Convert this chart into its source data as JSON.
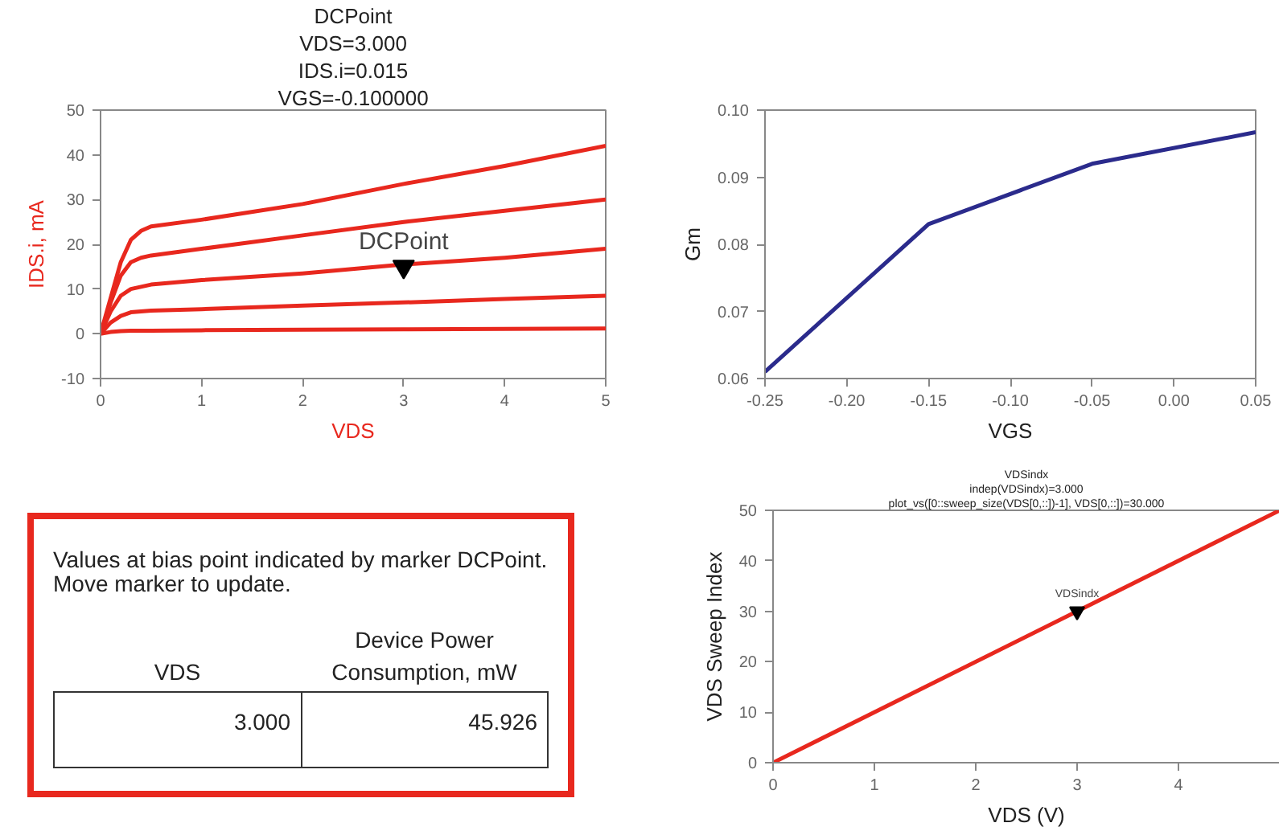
{
  "chart_data": [
    {
      "type": "line",
      "xlabel": "VDS",
      "ylabel": "IDS.i, mA",
      "xlim": [
        0,
        5
      ],
      "ylim": [
        -10,
        50
      ],
      "xticks": [
        0,
        1,
        2,
        3,
        4,
        5
      ],
      "yticks": [
        -10,
        0,
        10,
        20,
        30,
        40,
        50
      ],
      "x": [
        0,
        0.1,
        0.2,
        0.3,
        0.4,
        0.5,
        1,
        2,
        3,
        4,
        5
      ],
      "series": [
        {
          "color": "#e8281e",
          "values": [
            0,
            8,
            16,
            21,
            23,
            24,
            25.5,
            29,
            33.5,
            37.5,
            42
          ]
        },
        {
          "color": "#e8281e",
          "values": [
            0,
            7,
            13,
            16,
            17,
            17.5,
            19,
            22,
            25,
            27.5,
            30
          ]
        },
        {
          "color": "#e8281e",
          "values": [
            0,
            5,
            8.5,
            10,
            10.5,
            11,
            12,
            13.5,
            15.5,
            17,
            19
          ]
        },
        {
          "color": "#e8281e",
          "values": [
            0,
            2.5,
            4,
            4.8,
            5,
            5.2,
            5.5,
            6.3,
            7,
            7.8,
            8.5
          ]
        },
        {
          "color": "#e8281e",
          "values": [
            0,
            0.4,
            0.6,
            0.7,
            0.7,
            0.7,
            0.8,
            0.9,
            1.0,
            1.1,
            1.2
          ]
        }
      ],
      "annotations": [
        {
          "text": "DCPoint",
          "x": 3,
          "y": 15
        },
        "DCPoint",
        "VDS=3.000",
        "IDS.i=0.015",
        "VGS=-0.100000"
      ]
    },
    {
      "type": "line",
      "xlabel": "VGS",
      "ylabel": "Gm",
      "xlim": [
        -0.25,
        0.05
      ],
      "ylim": [
        0.06,
        0.1
      ],
      "xticks": [
        -0.25,
        {
          "value": -0.2,
          "label": "-0.20"
        },
        -0.15,
        {
          "value": -0.1,
          "label": "-0.10"
        },
        -0.05,
        {
          "value": 0,
          "label": "0.00"
        },
        0.05
      ],
      "yticks": [
        0.06,
        0.07,
        0.08,
        0.09,
        {
          "value": 0.1,
          "label": "0.10"
        }
      ],
      "x": [
        -0.25,
        -0.15,
        -0.05,
        0.05
      ],
      "series": [
        {
          "color": "#2b2b8c",
          "values": [
            0.061,
            0.083,
            0.092,
            0.0967
          ]
        }
      ]
    },
    {
      "type": "other",
      "title": "Values at bias point indicated by marker DCPoint. Move marker to update.",
      "categories": [
        "VDS",
        "Device Power Consumption, mW"
      ],
      "value_labels": [
        "3.000",
        "45.926"
      ]
    },
    {
      "type": "line",
      "xlabel": "VDS (V)",
      "ylabel": "VDS Sweep Index",
      "xlim": [
        0,
        5
      ],
      "ylim": [
        0,
        50
      ],
      "xticks": [
        0,
        1,
        2,
        3,
        4
      ],
      "yticks": [
        0,
        10,
        20,
        30,
        40,
        50
      ],
      "x": [
        0,
        5
      ],
      "series": [
        {
          "color": "#e8281e",
          "values": [
            0,
            50
          ]
        }
      ],
      "annotations": [
        {
          "text": "VDSindx",
          "x": 3,
          "y": 30
        },
        "VDSindx",
        "indep(VDSindx)=3.000",
        "plot_vs([0::sweep_size(VDS[0,::])-1], VDS[0,::])=30.000"
      ]
    }
  ]
}
